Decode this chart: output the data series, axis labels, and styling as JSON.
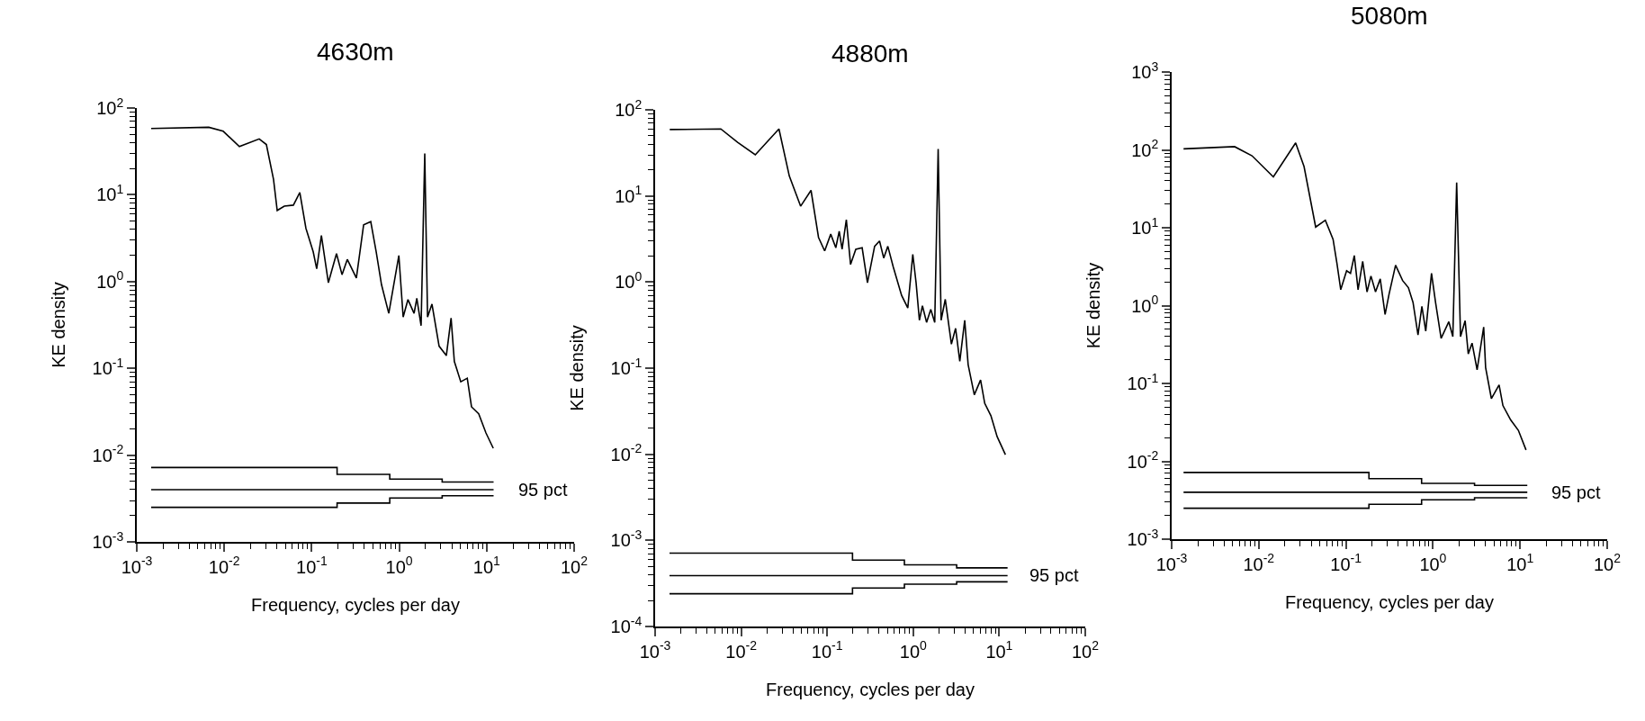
{
  "chart_data": [
    {
      "type": "line",
      "title": "4630m",
      "xlabel": "Frequency, cycles per day",
      "ylabel": "KE density",
      "log": "xy",
      "xlim": [
        0.001,
        100
      ],
      "ylim": [
        0.001,
        100
      ],
      "xticks": [
        {
          "value": 0.001,
          "label": "10$^{-3}$"
        },
        {
          "value": 0.002,
          "label": null
        },
        {
          "value": 0.003,
          "label": null
        },
        {
          "value": 0.004,
          "label": null
        },
        {
          "value": 0.005,
          "label": null
        },
        {
          "value": 0.006,
          "label": null
        },
        {
          "value": 0.007,
          "label": null
        },
        {
          "value": 0.008,
          "label": null
        },
        {
          "value": 0.009,
          "label": null
        },
        {
          "value": 0.01,
          "label": "10$^{-2}$"
        },
        {
          "value": 0.02,
          "label": null
        },
        {
          "value": 0.03,
          "label": null
        },
        {
          "value": 0.04,
          "label": null
        },
        {
          "value": 0.05,
          "label": null
        },
        {
          "value": 0.06,
          "label": null
        },
        {
          "value": 0.07,
          "label": null
        },
        {
          "value": 0.08,
          "label": null
        },
        {
          "value": 0.09,
          "label": null
        },
        {
          "value": 0.1,
          "label": "10$^{-1}$"
        },
        {
          "value": 0.2,
          "label": null
        },
        {
          "value": 0.3,
          "label": null
        },
        {
          "value": 0.4,
          "label": null
        },
        {
          "value": 0.5,
          "label": null
        },
        {
          "value": 0.6,
          "label": null
        },
        {
          "value": 0.7,
          "label": null
        },
        {
          "value": 0.8,
          "label": null
        },
        {
          "value": 0.9,
          "label": null
        },
        {
          "value": 1,
          "label": "10$^{0}$"
        },
        {
          "value": 2,
          "label": null
        },
        {
          "value": 3,
          "label": null
        },
        {
          "value": 4,
          "label": null
        },
        {
          "value": 5,
          "label": null
        },
        {
          "value": 6,
          "label": null
        },
        {
          "value": 7,
          "label": null
        },
        {
          "value": 8,
          "label": null
        },
        {
          "value": 9,
          "label": null
        },
        {
          "value": 10,
          "label": "10$^{1}$"
        },
        {
          "value": 20,
          "label": null
        },
        {
          "value": 30,
          "label": null
        },
        {
          "value": 40,
          "label": null
        },
        {
          "value": 50,
          "label": null
        },
        {
          "value": 60,
          "label": null
        },
        {
          "value": 70,
          "label": null
        },
        {
          "value": 80,
          "label": null
        },
        {
          "value": 90,
          "label": null
        },
        {
          "value": 100,
          "label": "10$^{2}$"
        }
      ],
      "yticks": [
        {
          "value": 0.001,
          "label": "10$^{-3}$"
        },
        {
          "value": 0.002,
          "label": null
        },
        {
          "value": 0.003,
          "label": null
        },
        {
          "value": 0.004,
          "label": null
        },
        {
          "value": 0.005,
          "label": null
        },
        {
          "value": 0.006,
          "label": null
        },
        {
          "value": 0.007,
          "label": null
        },
        {
          "value": 0.008,
          "label": null
        },
        {
          "value": 0.009,
          "label": null
        },
        {
          "value": 0.01,
          "label": "10$^{-2}$"
        },
        {
          "value": 0.02,
          "label": null
        },
        {
          "value": 0.03,
          "label": null
        },
        {
          "value": 0.04,
          "label": null
        },
        {
          "value": 0.05,
          "label": null
        },
        {
          "value": 0.06,
          "label": null
        },
        {
          "value": 0.07,
          "label": null
        },
        {
          "value": 0.08,
          "label": null
        },
        {
          "value": 0.09,
          "label": null
        },
        {
          "value": 0.1,
          "label": "10$^{-1}$"
        },
        {
          "value": 0.2,
          "label": null
        },
        {
          "value": 0.3,
          "label": null
        },
        {
          "value": 0.4,
          "label": null
        },
        {
          "value": 0.5,
          "label": null
        },
        {
          "value": 0.6,
          "label": null
        },
        {
          "value": 0.7,
          "label": null
        },
        {
          "value": 0.8,
          "label": null
        },
        {
          "value": 0.9,
          "label": null
        },
        {
          "value": 1,
          "label": "10$^{0}$"
        },
        {
          "value": 2,
          "label": null
        },
        {
          "value": 3,
          "label": null
        },
        {
          "value": 4,
          "label": null
        },
        {
          "value": 5,
          "label": null
        },
        {
          "value": 6,
          "label": null
        },
        {
          "value": 7,
          "label": null
        },
        {
          "value": 8,
          "label": null
        },
        {
          "value": 9,
          "label": null
        },
        {
          "value": 10,
          "label": "10$^{1}$"
        },
        {
          "value": 20,
          "label": null
        },
        {
          "value": 30,
          "label": null
        },
        {
          "value": 40,
          "label": null
        },
        {
          "value": 50,
          "label": null
        },
        {
          "value": 60,
          "label": null
        },
        {
          "value": 70,
          "label": null
        },
        {
          "value": 80,
          "label": null
        },
        {
          "value": 90,
          "label": null
        },
        {
          "value": 100,
          "label": "10$^{2}$"
        }
      ],
      "annotations": [
        "95 pct"
      ],
      "series": [
        {
          "type": "line",
          "color": "#000000",
          "x": [
            0.00146,
            0.00665,
            0.00973,
            0.0149,
            0.0251,
            0.0303,
            0.0366,
            0.0403,
            0.0486,
            0.0617,
            0.0731,
            0.0859,
            0.104,
            0.114,
            0.129,
            0.155,
            0.192,
            0.222,
            0.255,
            0.324,
            0.392,
            0.473,
            0.546,
            0.628,
            0.76,
            0.991,
            1.11,
            1.26,
            1.48,
            1.59,
            1.78,
            1.96,
            2.11,
            2.37,
            2.86,
            3.46,
            3.92,
            4.27,
            5.06,
            6.0,
            6.71,
            8.11,
            9.82,
            11.9
          ],
          "values": [
            58,
            60,
            54,
            36,
            44,
            38,
            15,
            6.6,
            7.4,
            7.6,
            10.6,
            4.1,
            2.2,
            1.4,
            3.4,
            0.97,
            2.1,
            1.2,
            1.8,
            1.1,
            4.5,
            4.9,
            2.2,
            0.92,
            0.43,
            2.0,
            0.39,
            0.62,
            0.43,
            0.64,
            0.31,
            30,
            0.39,
            0.55,
            0.18,
            0.14,
            0.38,
            0.12,
            0.07,
            0.077,
            0.036,
            0.03,
            0.018,
            0.012
          ]
        },
        {
          "type": "step",
          "color": "#000000",
          "x": [
            0.00146,
            0.195,
            0.78,
            3.1,
            12
          ],
          "values": [
            0.0072,
            0.006,
            0.0053,
            0.0049,
            0.0049
          ]
        },
        {
          "type": "step",
          "color": "#000000",
          "x": [
            0.00146,
            12
          ],
          "values": [
            0.004,
            0.004
          ]
        },
        {
          "type": "step",
          "color": "#000000",
          "x": [
            0.00146,
            0.195,
            0.78,
            3.1,
            12
          ],
          "values": [
            0.0025,
            0.0028,
            0.0032,
            0.0034,
            0.0034
          ]
        }
      ]
    },
    {
      "type": "line",
      "title": "4880m",
      "xlabel": "Frequency, cycles per day",
      "ylabel": "KE density",
      "log": "xy",
      "xlim": [
        0.001,
        100
      ],
      "ylim": [
        0.0001,
        100
      ],
      "xticks": [
        {
          "value": 0.001,
          "label": "10$^{-3}$"
        },
        {
          "value": 0.002,
          "label": null
        },
        {
          "value": 0.003,
          "label": null
        },
        {
          "value": 0.004,
          "label": null
        },
        {
          "value": 0.005,
          "label": null
        },
        {
          "value": 0.006,
          "label": null
        },
        {
          "value": 0.007,
          "label": null
        },
        {
          "value": 0.008,
          "label": null
        },
        {
          "value": 0.009,
          "label": null
        },
        {
          "value": 0.01,
          "label": "10$^{-2}$"
        },
        {
          "value": 0.02,
          "label": null
        },
        {
          "value": 0.03,
          "label": null
        },
        {
          "value": 0.04,
          "label": null
        },
        {
          "value": 0.05,
          "label": null
        },
        {
          "value": 0.06,
          "label": null
        },
        {
          "value": 0.07,
          "label": null
        },
        {
          "value": 0.08,
          "label": null
        },
        {
          "value": 0.09,
          "label": null
        },
        {
          "value": 0.1,
          "label": "10$^{-1}$"
        },
        {
          "value": 0.2,
          "label": null
        },
        {
          "value": 0.3,
          "label": null
        },
        {
          "value": 0.4,
          "label": null
        },
        {
          "value": 0.5,
          "label": null
        },
        {
          "value": 0.6,
          "label": null
        },
        {
          "value": 0.7,
          "label": null
        },
        {
          "value": 0.8,
          "label": null
        },
        {
          "value": 0.9,
          "label": null
        },
        {
          "value": 1,
          "label": "10$^{0}$"
        },
        {
          "value": 2,
          "label": null
        },
        {
          "value": 3,
          "label": null
        },
        {
          "value": 4,
          "label": null
        },
        {
          "value": 5,
          "label": null
        },
        {
          "value": 6,
          "label": null
        },
        {
          "value": 7,
          "label": null
        },
        {
          "value": 8,
          "label": null
        },
        {
          "value": 9,
          "label": null
        },
        {
          "value": 10,
          "label": "10$^{1}$"
        },
        {
          "value": 20,
          "label": null
        },
        {
          "value": 30,
          "label": null
        },
        {
          "value": 40,
          "label": null
        },
        {
          "value": 50,
          "label": null
        },
        {
          "value": 60,
          "label": null
        },
        {
          "value": 70,
          "label": null
        },
        {
          "value": 80,
          "label": null
        },
        {
          "value": 90,
          "label": null
        },
        {
          "value": 100,
          "label": "10$^{2}$"
        }
      ],
      "yticks": [
        {
          "value": 0.0001,
          "label": "10$^{-4}$"
        },
        {
          "value": 0.0002,
          "label": null
        },
        {
          "value": 0.0003,
          "label": null
        },
        {
          "value": 0.0004,
          "label": null
        },
        {
          "value": 0.0005,
          "label": null
        },
        {
          "value": 0.0006,
          "label": null
        },
        {
          "value": 0.0007,
          "label": null
        },
        {
          "value": 0.0008,
          "label": null
        },
        {
          "value": 0.0009,
          "label": null
        },
        {
          "value": 0.001,
          "label": "10$^{-3}$"
        },
        {
          "value": 0.002,
          "label": null
        },
        {
          "value": 0.003,
          "label": null
        },
        {
          "value": 0.004,
          "label": null
        },
        {
          "value": 0.005,
          "label": null
        },
        {
          "value": 0.006,
          "label": null
        },
        {
          "value": 0.007,
          "label": null
        },
        {
          "value": 0.008,
          "label": null
        },
        {
          "value": 0.009,
          "label": null
        },
        {
          "value": 0.01,
          "label": "10$^{-2}$"
        },
        {
          "value": 0.02,
          "label": null
        },
        {
          "value": 0.03,
          "label": null
        },
        {
          "value": 0.04,
          "label": null
        },
        {
          "value": 0.05,
          "label": null
        },
        {
          "value": 0.06,
          "label": null
        },
        {
          "value": 0.07,
          "label": null
        },
        {
          "value": 0.08,
          "label": null
        },
        {
          "value": 0.09,
          "label": null
        },
        {
          "value": 0.1,
          "label": "10$^{-1}$"
        },
        {
          "value": 0.2,
          "label": null
        },
        {
          "value": 0.3,
          "label": null
        },
        {
          "value": 0.4,
          "label": null
        },
        {
          "value": 0.5,
          "label": null
        },
        {
          "value": 0.6,
          "label": null
        },
        {
          "value": 0.7,
          "label": null
        },
        {
          "value": 0.8,
          "label": null
        },
        {
          "value": 0.9,
          "label": null
        },
        {
          "value": 1,
          "label": "10$^{0}$"
        },
        {
          "value": 2,
          "label": null
        },
        {
          "value": 3,
          "label": null
        },
        {
          "value": 4,
          "label": null
        },
        {
          "value": 5,
          "label": null
        },
        {
          "value": 6,
          "label": null
        },
        {
          "value": 7,
          "label": null
        },
        {
          "value": 8,
          "label": null
        },
        {
          "value": 9,
          "label": null
        },
        {
          "value": 10,
          "label": "10$^{1}$"
        },
        {
          "value": 20,
          "label": null
        },
        {
          "value": 30,
          "label": null
        },
        {
          "value": 40,
          "label": null
        },
        {
          "value": 50,
          "label": null
        },
        {
          "value": 60,
          "label": null
        },
        {
          "value": 70,
          "label": null
        },
        {
          "value": 80,
          "label": null
        },
        {
          "value": 90,
          "label": null
        },
        {
          "value": 100,
          "label": "10$^{2}$"
        }
      ],
      "annotations": [
        "95 pct"
      ],
      "series": [
        {
          "type": "line",
          "color": "#000000",
          "x": [
            0.00148,
            0.0058,
            0.0091,
            0.0146,
            0.0275,
            0.0363,
            0.0491,
            0.0649,
            0.0793,
            0.0935,
            0.11,
            0.126,
            0.138,
            0.149,
            0.167,
            0.187,
            0.215,
            0.255,
            0.294,
            0.356,
            0.406,
            0.454,
            0.507,
            0.586,
            0.733,
            0.865,
            0.989,
            1.08,
            1.18,
            1.28,
            1.43,
            1.6,
            1.78,
            1.95,
            2.11,
            2.36,
            2.78,
            3.11,
            3.48,
            3.97,
            4.35,
            5.13,
            6.07,
            6.78,
            8.0,
            9.46,
            11.8
          ],
          "values": [
            59,
            60,
            42,
            30,
            60,
            17,
            7.6,
            11.6,
            3.3,
            2.3,
            3.6,
            2.5,
            3.9,
            2.4,
            5.3,
            1.6,
            2.4,
            2.5,
            0.98,
            2.6,
            3.0,
            1.9,
            2.6,
            1.5,
            0.7,
            0.5,
            2.1,
            0.98,
            0.36,
            0.53,
            0.34,
            0.48,
            0.34,
            35,
            0.36,
            0.63,
            0.19,
            0.29,
            0.12,
            0.36,
            0.11,
            0.049,
            0.073,
            0.039,
            0.028,
            0.016,
            0.0099
          ]
        },
        {
          "type": "step",
          "color": "#000000",
          "x": [
            0.00147,
            0.197,
            0.79,
            3.2,
            12.5
          ],
          "values": [
            0.00071,
            0.00059,
            0.00052,
            0.00048,
            0.00048
          ]
        },
        {
          "type": "step",
          "color": "#000000",
          "x": [
            0.00147,
            12.5
          ],
          "values": [
            0.00039,
            0.00039
          ]
        },
        {
          "type": "step",
          "color": "#000000",
          "x": [
            0.00147,
            0.197,
            0.79,
            3.2,
            12.5
          ],
          "values": [
            0.00024,
            0.00028,
            0.00031,
            0.00033,
            0.00033
          ]
        }
      ]
    },
    {
      "type": "line",
      "title": "5080m",
      "xlabel": "Frequency, cycles per day",
      "ylabel": "KE density",
      "log": "xy",
      "xlim": [
        0.001,
        100
      ],
      "ylim": [
        0.001,
        1000
      ],
      "xticks": [
        {
          "value": 0.001,
          "label": "10$^{-3}$"
        },
        {
          "value": 0.002,
          "label": null
        },
        {
          "value": 0.003,
          "label": null
        },
        {
          "value": 0.004,
          "label": null
        },
        {
          "value": 0.005,
          "label": null
        },
        {
          "value": 0.006,
          "label": null
        },
        {
          "value": 0.007,
          "label": null
        },
        {
          "value": 0.008,
          "label": null
        },
        {
          "value": 0.009,
          "label": null
        },
        {
          "value": 0.01,
          "label": "10$^{-2}$"
        },
        {
          "value": 0.02,
          "label": null
        },
        {
          "value": 0.03,
          "label": null
        },
        {
          "value": 0.04,
          "label": null
        },
        {
          "value": 0.05,
          "label": null
        },
        {
          "value": 0.06,
          "label": null
        },
        {
          "value": 0.07,
          "label": null
        },
        {
          "value": 0.08,
          "label": null
        },
        {
          "value": 0.09,
          "label": null
        },
        {
          "value": 0.1,
          "label": "10$^{-1}$"
        },
        {
          "value": 0.2,
          "label": null
        },
        {
          "value": 0.3,
          "label": null
        },
        {
          "value": 0.4,
          "label": null
        },
        {
          "value": 0.5,
          "label": null
        },
        {
          "value": 0.6,
          "label": null
        },
        {
          "value": 0.7,
          "label": null
        },
        {
          "value": 0.8,
          "label": null
        },
        {
          "value": 0.9,
          "label": null
        },
        {
          "value": 1,
          "label": "10$^{0}$"
        },
        {
          "value": 2,
          "label": null
        },
        {
          "value": 3,
          "label": null
        },
        {
          "value": 4,
          "label": null
        },
        {
          "value": 5,
          "label": null
        },
        {
          "value": 6,
          "label": null
        },
        {
          "value": 7,
          "label": null
        },
        {
          "value": 8,
          "label": null
        },
        {
          "value": 9,
          "label": null
        },
        {
          "value": 10,
          "label": "10$^{1}$"
        },
        {
          "value": 20,
          "label": null
        },
        {
          "value": 30,
          "label": null
        },
        {
          "value": 40,
          "label": null
        },
        {
          "value": 50,
          "label": null
        },
        {
          "value": 60,
          "label": null
        },
        {
          "value": 70,
          "label": null
        },
        {
          "value": 80,
          "label": null
        },
        {
          "value": 90,
          "label": null
        },
        {
          "value": 100,
          "label": "10$^{2}$"
        }
      ],
      "yticks": [
        {
          "value": 0.001,
          "label": "10$^{-3}$"
        },
        {
          "value": 0.002,
          "label": null
        },
        {
          "value": 0.003,
          "label": null
        },
        {
          "value": 0.004,
          "label": null
        },
        {
          "value": 0.005,
          "label": null
        },
        {
          "value": 0.006,
          "label": null
        },
        {
          "value": 0.007,
          "label": null
        },
        {
          "value": 0.008,
          "label": null
        },
        {
          "value": 0.009,
          "label": null
        },
        {
          "value": 0.01,
          "label": "10$^{-2}$"
        },
        {
          "value": 0.02,
          "label": null
        },
        {
          "value": 0.03,
          "label": null
        },
        {
          "value": 0.04,
          "label": null
        },
        {
          "value": 0.05,
          "label": null
        },
        {
          "value": 0.06,
          "label": null
        },
        {
          "value": 0.07,
          "label": null
        },
        {
          "value": 0.08,
          "label": null
        },
        {
          "value": 0.09,
          "label": null
        },
        {
          "value": 0.1,
          "label": "10$^{-1}$"
        },
        {
          "value": 0.2,
          "label": null
        },
        {
          "value": 0.3,
          "label": null
        },
        {
          "value": 0.4,
          "label": null
        },
        {
          "value": 0.5,
          "label": null
        },
        {
          "value": 0.6,
          "label": null
        },
        {
          "value": 0.7,
          "label": null
        },
        {
          "value": 0.8,
          "label": null
        },
        {
          "value": 0.9,
          "label": null
        },
        {
          "value": 1,
          "label": "10$^{0}$"
        },
        {
          "value": 2,
          "label": null
        },
        {
          "value": 3,
          "label": null
        },
        {
          "value": 4,
          "label": null
        },
        {
          "value": 5,
          "label": null
        },
        {
          "value": 6,
          "label": null
        },
        {
          "value": 7,
          "label": null
        },
        {
          "value": 8,
          "label": null
        },
        {
          "value": 9,
          "label": null
        },
        {
          "value": 10,
          "label": "10$^{1}$"
        },
        {
          "value": 20,
          "label": null
        },
        {
          "value": 30,
          "label": null
        },
        {
          "value": 40,
          "label": null
        },
        {
          "value": 50,
          "label": null
        },
        {
          "value": 60,
          "label": null
        },
        {
          "value": 70,
          "label": null
        },
        {
          "value": 80,
          "label": null
        },
        {
          "value": 90,
          "label": null
        },
        {
          "value": 100,
          "label": "10$^{2}$"
        },
        {
          "value": 200,
          "label": null
        },
        {
          "value": 300,
          "label": null
        },
        {
          "value": 400,
          "label": null
        },
        {
          "value": 500,
          "label": null
        },
        {
          "value": 600,
          "label": null
        },
        {
          "value": 700,
          "label": null
        },
        {
          "value": 800,
          "label": null
        },
        {
          "value": 900,
          "label": null
        },
        {
          "value": 1000,
          "label": "10$^{3}$"
        }
      ],
      "annotations": [
        "95 pct"
      ],
      "series": [
        {
          "type": "line",
          "color": "#000000",
          "x": [
            0.00137,
            0.00528,
            0.00836,
            0.0147,
            0.0265,
            0.0331,
            0.045,
            0.0581,
            0.0713,
            0.0789,
            0.0873,
            0.102,
            0.113,
            0.125,
            0.138,
            0.156,
            0.175,
            0.194,
            0.219,
            0.248,
            0.282,
            0.313,
            0.372,
            0.448,
            0.522,
            0.59,
            0.673,
            0.746,
            0.826,
            0.962,
            1.07,
            1.24,
            1.52,
            1.69,
            1.87,
            2.07,
            2.34,
            2.54,
            2.81,
            3.21,
            3.82,
            4.02,
            4.68,
            5.74,
            6.35,
            7.8,
            9.55,
            11.7
          ],
          "values": [
            103,
            110,
            84,
            45,
            123,
            61,
            10.2,
            12.5,
            7.1,
            3.5,
            1.6,
            2.8,
            2.6,
            4.4,
            1.6,
            3.7,
            1.5,
            2.4,
            1.5,
            2.2,
            0.77,
            1.4,
            3.3,
            2.1,
            1.7,
            1.1,
            0.42,
            0.98,
            0.47,
            2.6,
            1.1,
            0.38,
            0.62,
            0.4,
            38,
            0.4,
            0.64,
            0.24,
            0.33,
            0.15,
            0.53,
            0.16,
            0.064,
            0.096,
            0.052,
            0.034,
            0.025,
            0.014
          ]
        },
        {
          "type": "step",
          "color": "#000000",
          "x": [
            0.00137,
            0.184,
            0.74,
            3.0,
            12.1
          ],
          "values": [
            0.0072,
            0.006,
            0.0052,
            0.0049,
            0.0049
          ]
        },
        {
          "type": "step",
          "color": "#000000",
          "x": [
            0.00137,
            12.1
          ],
          "values": [
            0.004,
            0.004
          ]
        },
        {
          "type": "step",
          "color": "#000000",
          "x": [
            0.00137,
            0.184,
            0.74,
            3.0,
            12.1
          ],
          "values": [
            0.0025,
            0.0028,
            0.0032,
            0.0034,
            0.0034
          ]
        }
      ]
    }
  ]
}
